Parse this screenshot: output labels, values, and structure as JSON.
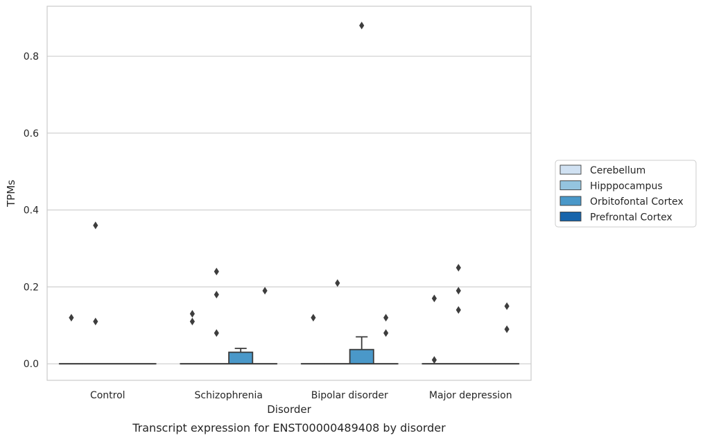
{
  "chart_data": {
    "type": "box",
    "title": "",
    "caption": "Transcript expression for ENST00000489408 by disorder",
    "xlabel": "Disorder",
    "ylabel": "TPMs",
    "ylim": [
      -0.043,
      0.93
    ],
    "yticks": [
      0.0,
      0.2,
      0.4,
      0.6,
      0.8
    ],
    "ytick_labels": [
      "0.0",
      "0.2",
      "0.4",
      "0.6",
      "0.8"
    ],
    "categories": [
      "Control",
      "Schizophrenia",
      "Bipolar disorder",
      "Major depression"
    ],
    "grid": "horizontal",
    "legend": "right",
    "series": [
      {
        "name": "Cerebellum",
        "color": "#d0e1f2",
        "boxes": [
          {
            "q1": 0,
            "median": 0,
            "q3": 0,
            "whislo": 0,
            "whishi": 0,
            "fliers": [
              0.12
            ]
          },
          {
            "q1": 0,
            "median": 0,
            "q3": 0,
            "whislo": 0,
            "whishi": 0,
            "fliers": [
              0.13,
              0.11
            ]
          },
          {
            "q1": 0,
            "median": 0,
            "q3": 0,
            "whislo": 0,
            "whishi": 0,
            "fliers": [
              0.12
            ]
          },
          {
            "q1": 0,
            "median": 0,
            "q3": 0,
            "whislo": 0,
            "whishi": 0,
            "fliers": [
              0.17,
              0.01
            ]
          }
        ]
      },
      {
        "name": "Hipppocampus",
        "color": "#94c4df",
        "boxes": [
          {
            "q1": 0,
            "median": 0,
            "q3": 0,
            "whislo": 0,
            "whishi": 0,
            "fliers": [
              0.36,
              0.11
            ]
          },
          {
            "q1": 0,
            "median": 0,
            "q3": 0,
            "whislo": 0,
            "whishi": 0,
            "fliers": [
              0.24,
              0.18,
              0.08
            ]
          },
          {
            "q1": 0,
            "median": 0,
            "q3": 0,
            "whislo": 0,
            "whishi": 0,
            "fliers": [
              0.21
            ]
          },
          {
            "q1": 0,
            "median": 0,
            "q3": 0,
            "whislo": 0,
            "whishi": 0,
            "fliers": [
              0.25,
              0.19,
              0.14
            ]
          }
        ]
      },
      {
        "name": "Orbitofontal Cortex",
        "color": "#4a98c9",
        "boxes": [
          {
            "q1": 0,
            "median": 0,
            "q3": 0,
            "whislo": 0,
            "whishi": 0,
            "fliers": []
          },
          {
            "q1": 0,
            "median": 0,
            "q3": 0.03,
            "whislo": 0,
            "whishi": 0.04,
            "fliers": []
          },
          {
            "q1": 0,
            "median": 0,
            "q3": 0.037,
            "whislo": 0,
            "whishi": 0.07,
            "fliers": [
              0.88
            ]
          },
          {
            "q1": 0,
            "median": 0,
            "q3": 0,
            "whislo": 0,
            "whishi": 0,
            "fliers": []
          }
        ]
      },
      {
        "name": "Prefrontal Cortex",
        "color": "#1764ab",
        "boxes": [
          {
            "q1": 0,
            "median": 0,
            "q3": 0,
            "whislo": 0,
            "whishi": 0,
            "fliers": []
          },
          {
            "q1": 0,
            "median": 0,
            "q3": 0,
            "whislo": 0,
            "whishi": 0,
            "fliers": [
              0.19
            ]
          },
          {
            "q1": 0,
            "median": 0,
            "q3": 0,
            "whislo": 0,
            "whishi": 0,
            "fliers": [
              0.12,
              0.08
            ]
          },
          {
            "q1": 0,
            "median": 0,
            "q3": 0,
            "whislo": 0,
            "whishi": 0,
            "fliers": [
              0.15,
              0.09
            ]
          }
        ]
      }
    ]
  }
}
